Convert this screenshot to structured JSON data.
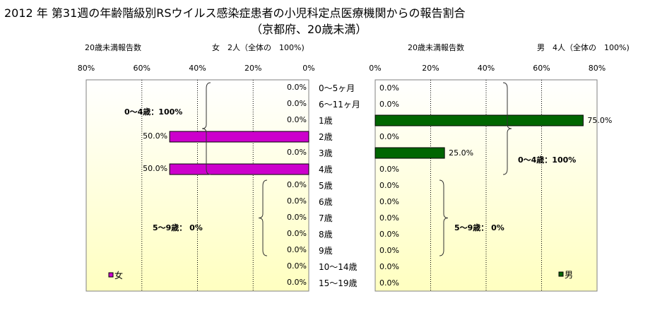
{
  "title": "2012 年 第31週の年齢階級別RSウイルス感染症患者の小児科定点医療機関からの報告割合",
  "subtitle": "（京都府、20歳未満）",
  "chart_data": {
    "type": "bar",
    "orientation": "horizontal",
    "categories": [
      "0〜5ヶ月",
      "6〜11ヶ月",
      "1歳",
      "2歳",
      "3歳",
      "4歳",
      "5歳",
      "6歳",
      "7歳",
      "8歳",
      "9歳",
      "10〜14歳",
      "15〜19歳"
    ],
    "female": {
      "header_left": "20歳未満報告数",
      "header_right": "女　2人（全体の　100%)",
      "legend": "女",
      "color": "#cc00cc",
      "values": [
        0,
        0,
        0,
        50,
        0,
        50,
        0,
        0,
        0,
        0,
        0,
        0,
        0
      ],
      "value_labels": [
        "0.0%",
        "0.0%",
        "0.0%",
        "50.0%",
        "0.0%",
        "50.0%",
        "0.0%",
        "0.0%",
        "0.0%",
        "0.0%",
        "0.0%",
        "0.0%",
        "0.0%"
      ],
      "xlim": [
        0,
        80
      ],
      "ticks": [
        "80%",
        "60%",
        "40%",
        "20%",
        "0%"
      ],
      "groups": [
        {
          "label": "0〜4歳：100%",
          "from": 0,
          "to": 5
        },
        {
          "label": "5〜9歳：  0%",
          "from": 6,
          "to": 10
        }
      ]
    },
    "male": {
      "header_left": "20歳未満報告数",
      "header_right": "男　4人（全体の　100%)",
      "legend": "男",
      "color": "#006600",
      "values": [
        0,
        0,
        75,
        0,
        25,
        0,
        0,
        0,
        0,
        0,
        0,
        0,
        0
      ],
      "value_labels": [
        "0.0%",
        "0.0%",
        "75.0%",
        "0.0%",
        "25.0%",
        "0.0%",
        "0.0%",
        "0.0%",
        "0.0%",
        "0.0%",
        "0.0%",
        "0.0%",
        "0.0%"
      ],
      "xlim": [
        0,
        80
      ],
      "ticks": [
        "0%",
        "20%",
        "40%",
        "60%",
        "80%"
      ],
      "groups": [
        {
          "label": "0〜4歳：100%",
          "from": 0,
          "to": 5
        },
        {
          "label": "5〜9歳：  0%",
          "from": 6,
          "to": 10
        }
      ]
    },
    "grid": true
  }
}
